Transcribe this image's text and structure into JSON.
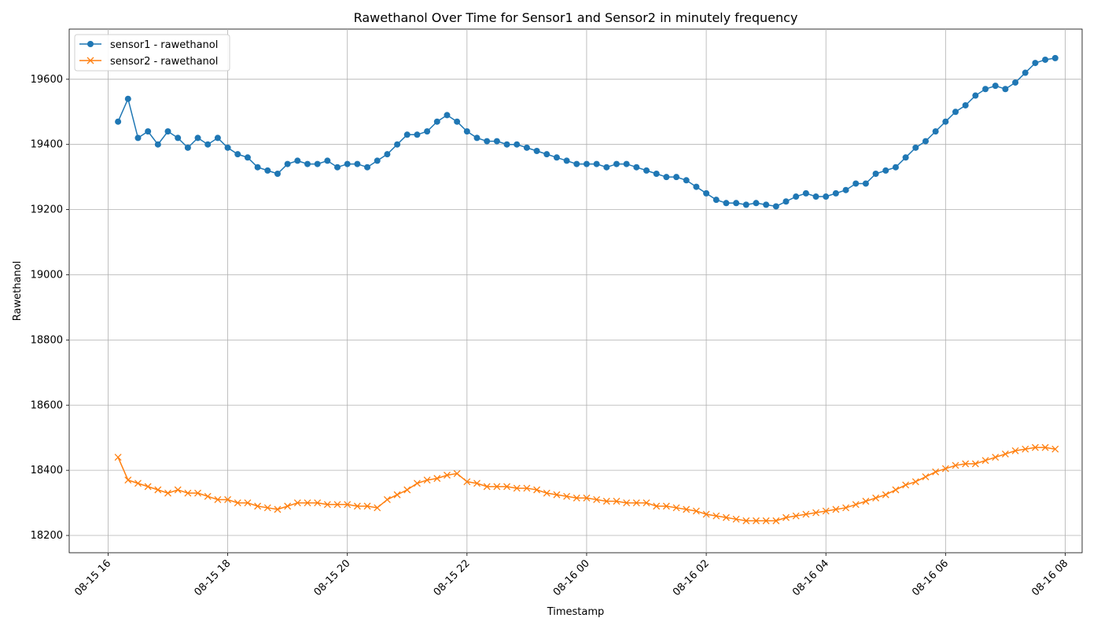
{
  "chart_data": {
    "type": "line",
    "title": "Rawethanol Over Time for Sensor1 and Sensor2 in minutely frequency",
    "xlabel": "Timestamp",
    "ylabel": "Rawethanol",
    "x": [
      "08-15 16:10",
      "08-15 16:20",
      "08-15 16:30",
      "08-15 16:40",
      "08-15 16:50",
      "08-15 17:00",
      "08-15 17:10",
      "08-15 17:20",
      "08-15 17:30",
      "08-15 17:40",
      "08-15 17:50",
      "08-15 18:00",
      "08-15 18:10",
      "08-15 18:20",
      "08-15 18:30",
      "08-15 18:40",
      "08-15 18:50",
      "08-15 19:00",
      "08-15 19:10",
      "08-15 19:20",
      "08-15 19:30",
      "08-15 19:40",
      "08-15 19:50",
      "08-15 20:00",
      "08-15 20:10",
      "08-15 20:20",
      "08-15 20:30",
      "08-15 20:40",
      "08-15 20:50",
      "08-15 21:00",
      "08-15 21:10",
      "08-15 21:20",
      "08-15 21:30",
      "08-15 21:40",
      "08-15 21:50",
      "08-15 22:00",
      "08-15 22:10",
      "08-15 22:20",
      "08-15 22:30",
      "08-15 22:40",
      "08-15 22:50",
      "08-15 23:00",
      "08-15 23:10",
      "08-15 23:20",
      "08-15 23:30",
      "08-15 23:40",
      "08-15 23:50",
      "08-16 00:00",
      "08-16 00:10",
      "08-16 00:20",
      "08-16 00:30",
      "08-16 00:40",
      "08-16 00:50",
      "08-16 01:00",
      "08-16 01:10",
      "08-16 01:20",
      "08-16 01:30",
      "08-16 01:40",
      "08-16 01:50",
      "08-16 02:00",
      "08-16 02:10",
      "08-16 02:20",
      "08-16 02:30",
      "08-16 02:40",
      "08-16 02:50",
      "08-16 03:00",
      "08-16 03:10",
      "08-16 03:20",
      "08-16 03:30",
      "08-16 03:40",
      "08-16 03:50",
      "08-16 04:00",
      "08-16 04:10",
      "08-16 04:20",
      "08-16 04:30",
      "08-16 04:40",
      "08-16 04:50",
      "08-16 05:00",
      "08-16 05:10",
      "08-16 05:20",
      "08-16 05:30",
      "08-16 05:40",
      "08-16 05:50",
      "08-16 06:00",
      "08-16 06:10",
      "08-16 06:20",
      "08-16 06:30",
      "08-16 06:40",
      "08-16 06:50",
      "08-16 07:00",
      "08-16 07:10",
      "08-16 07:20",
      "08-16 07:30",
      "08-16 07:40",
      "08-16 07:50"
    ],
    "series": [
      {
        "name": "sensor1 - rawethanol",
        "color": "#1f77b4",
        "marker": "o",
        "values": [
          19470,
          19540,
          19420,
          19440,
          19400,
          19440,
          19420,
          19390,
          19420,
          19400,
          19420,
          19390,
          19370,
          19360,
          19330,
          19320,
          19310,
          19340,
          19350,
          19340,
          19340,
          19350,
          19330,
          19340,
          19340,
          19330,
          19350,
          19370,
          19400,
          19430,
          19430,
          19440,
          19470,
          19490,
          19470,
          19440,
          19420,
          19410,
          19410,
          19400,
          19400,
          19390,
          19380,
          19370,
          19360,
          19350,
          19340,
          19340,
          19340,
          19330,
          19340,
          19340,
          19330,
          19320,
          19310,
          19300,
          19300,
          19290,
          19270,
          19250,
          19230,
          19220,
          19220,
          19215,
          19220,
          19215,
          19210,
          19225,
          19240,
          19250,
          19240,
          19240,
          19250,
          19260,
          19280,
          19280,
          19310,
          19320,
          19330,
          19360,
          19390,
          19410,
          19440,
          19470,
          19500,
          19520,
          19550,
          19570,
          19580,
          19570,
          19590,
          19620,
          19650,
          19660,
          19665
        ]
      },
      {
        "name": "sensor2 - rawethanol",
        "color": "#ff7f0e",
        "marker": "x",
        "values": [
          18440,
          18370,
          18360,
          18350,
          18340,
          18330,
          18340,
          18330,
          18330,
          18320,
          18310,
          18310,
          18300,
          18300,
          18290,
          18285,
          18280,
          18290,
          18300,
          18300,
          18300,
          18295,
          18295,
          18295,
          18290,
          18290,
          18285,
          18310,
          18325,
          18340,
          18360,
          18370,
          18375,
          18385,
          18390,
          18365,
          18360,
          18350,
          18350,
          18350,
          18345,
          18345,
          18340,
          18330,
          18325,
          18320,
          18315,
          18315,
          18310,
          18305,
          18305,
          18300,
          18300,
          18300,
          18290,
          18290,
          18285,
          18280,
          18275,
          18265,
          18260,
          18255,
          18250,
          18245,
          18245,
          18245,
          18245,
          18255,
          18260,
          18265,
          18270,
          18275,
          18280,
          18285,
          18295,
          18305,
          18315,
          18325,
          18340,
          18355,
          18365,
          18380,
          18395,
          18405,
          18415,
          18420,
          18420,
          18430,
          18440,
          18450,
          18460,
          18465,
          18470,
          18470,
          18465
        ]
      }
    ],
    "xlim": [
      "08-15 15:21",
      "08-16 08:17"
    ],
    "xticks": [
      "08-15 16",
      "08-15 18",
      "08-15 20",
      "08-15 22",
      "08-16 00",
      "08-16 02",
      "08-16 04",
      "08-16 06",
      "08-16 08"
    ],
    "ylim": [
      18147,
      19754
    ],
    "yticks": [
      18200,
      18400,
      18600,
      18800,
      19000,
      19200,
      19400,
      19600
    ],
    "grid": true,
    "legend": "upper left"
  }
}
